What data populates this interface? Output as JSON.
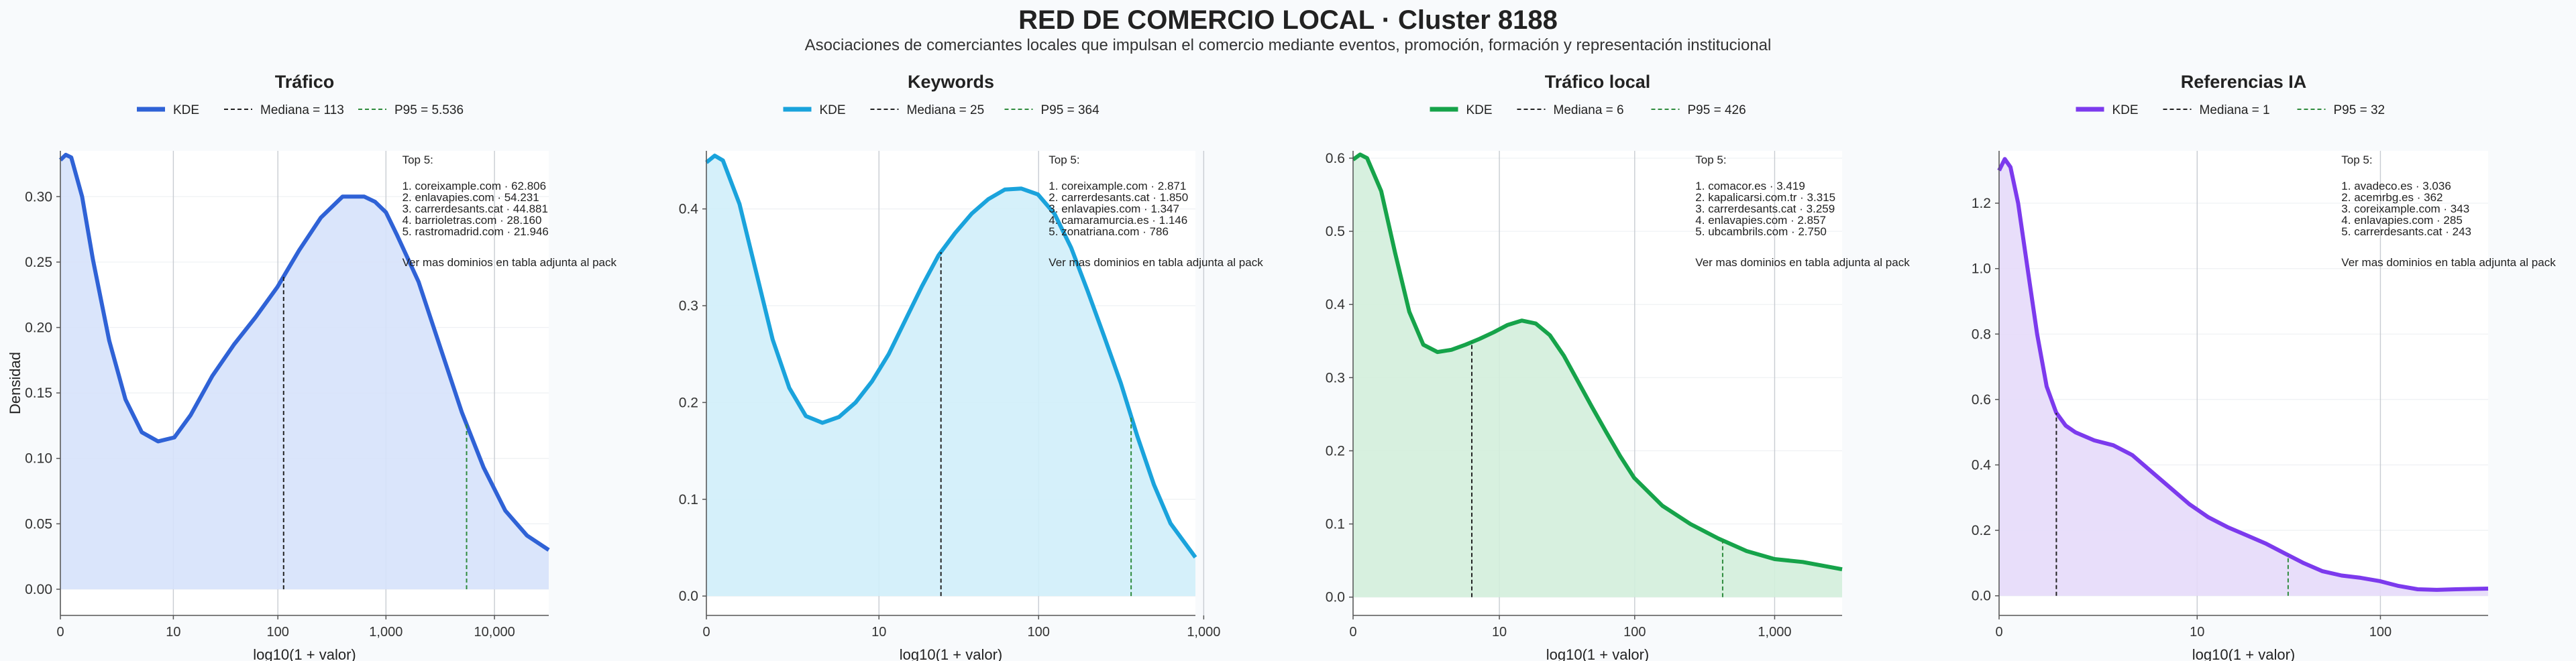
{
  "title": "RED DE COMERCIO LOCAL · Cluster 8188",
  "subtitle": "Asociaciones de comerciantes locales que impulsan el comercio mediante eventos, promoción, formación y representación institucional",
  "ylabel": "Densidad",
  "xlabel": "log10(1 + valor)",
  "legend_labels": {
    "kde": "KDE"
  },
  "top_header": "Top 5:",
  "top_footer": "Ver mas dominios en tabla adjunta al pack",
  "chart_data": [
    {
      "type": "area",
      "title": "Tráfico",
      "color": "#2f62d6",
      "fill": "#d6e2fb",
      "xlabel": "log10(1 + valor)",
      "ylabel": "Densidad",
      "xlim": [
        0,
        4.5
      ],
      "ylim": [
        -0.02,
        0.335
      ],
      "xticks": [
        0,
        1.041,
        2.004,
        3.0,
        4.0
      ],
      "xtick_labels": [
        "0",
        "10",
        "100",
        "1,000",
        "10,000"
      ],
      "yticks": [
        0,
        0.05,
        0.1,
        0.15,
        0.2,
        0.25,
        0.3
      ],
      "ytick_labels": [
        "0.00",
        "0.05",
        "0.10",
        "0.15",
        "0.20",
        "0.25",
        "0.30"
      ],
      "median": {
        "label": "Mediana = 113",
        "x": 2.057
      },
      "p95": {
        "label": "P95 = 5.536",
        "x": 3.743
      },
      "kde": {
        "x": [
          0,
          0.05,
          0.1,
          0.2,
          0.3,
          0.45,
          0.6,
          0.75,
          0.9,
          1.05,
          1.2,
          1.4,
          1.6,
          1.8,
          2.0,
          2.1,
          2.2,
          2.4,
          2.6,
          2.8,
          2.9,
          3.0,
          3.1,
          3.3,
          3.5,
          3.7,
          3.9,
          4.1,
          4.3,
          4.5
        ],
        "y": [
          0.328,
          0.332,
          0.33,
          0.3,
          0.252,
          0.19,
          0.145,
          0.12,
          0.113,
          0.116,
          0.133,
          0.163,
          0.187,
          0.208,
          0.231,
          0.245,
          0.259,
          0.284,
          0.3,
          0.3,
          0.296,
          0.288,
          0.271,
          0.235,
          0.185,
          0.135,
          0.093,
          0.06,
          0.041,
          0.03
        ]
      },
      "top5": [
        "1. coreixample.com · 62.806",
        "2. enlavapies.com · 54.231",
        "3. carrerdesants.cat · 44.881",
        "4. barrioletras.com · 28.160",
        "5. rastromadrid.com · 21.946"
      ]
    },
    {
      "type": "area",
      "title": "Keywords",
      "color": "#1aa3dc",
      "fill": "#d0eefa",
      "xlabel": "log10(1 + valor)",
      "ylabel": "",
      "xlim": [
        0,
        2.95
      ],
      "ylim": [
        -0.02,
        0.46
      ],
      "xticks": [
        0,
        1.041,
        2.004,
        3.0
      ],
      "xtick_labels": [
        "0",
        "10",
        "100",
        "1,000"
      ],
      "yticks": [
        0,
        0.1,
        0.2,
        0.3,
        0.4
      ],
      "ytick_labels": [
        "0.0",
        "0.1",
        "0.2",
        "0.3",
        "0.4"
      ],
      "median": {
        "label": "Mediana = 25",
        "x": 1.415
      },
      "p95": {
        "label": "P95 = 364",
        "x": 2.562
      },
      "kde": {
        "x": [
          0,
          0.05,
          0.1,
          0.2,
          0.3,
          0.4,
          0.5,
          0.6,
          0.7,
          0.8,
          0.9,
          1.0,
          1.1,
          1.2,
          1.3,
          1.4,
          1.5,
          1.6,
          1.7,
          1.8,
          1.9,
          2.0,
          2.1,
          2.2,
          2.3,
          2.4,
          2.5,
          2.6,
          2.7,
          2.8,
          2.95
        ],
        "y": [
          0.448,
          0.455,
          0.45,
          0.405,
          0.335,
          0.265,
          0.215,
          0.186,
          0.179,
          0.185,
          0.2,
          0.222,
          0.25,
          0.285,
          0.32,
          0.352,
          0.375,
          0.395,
          0.41,
          0.42,
          0.421,
          0.415,
          0.395,
          0.36,
          0.315,
          0.268,
          0.22,
          0.165,
          0.115,
          0.075,
          0.04
        ]
      },
      "top5": [
        "1. coreixample.com · 2.871",
        "2. carrerdesants.cat · 1.850",
        "3. enlavapies.com · 1.347",
        "4. camaramurcia.es · 1.146",
        "5. zonatriana.com · 786"
      ]
    },
    {
      "type": "area",
      "title": "Tráfico local",
      "color": "#16a34a",
      "fill": "#d3eedc",
      "xlabel": "log10(1 + valor)",
      "ylabel": "",
      "xlim": [
        0,
        3.48
      ],
      "ylim": [
        -0.025,
        0.61
      ],
      "xticks": [
        0,
        1.041,
        2.004,
        3.0
      ],
      "xtick_labels": [
        "0",
        "10",
        "100",
        "1,000"
      ],
      "yticks": [
        0,
        0.1,
        0.2,
        0.3,
        0.4,
        0.5,
        0.6
      ],
      "ytick_labels": [
        "0.0",
        "0.1",
        "0.2",
        "0.3",
        "0.4",
        "0.5",
        "0.6"
      ],
      "median": {
        "label": "Mediana = 6",
        "x": 0.845
      },
      "p95": {
        "label": "P95 = 426",
        "x": 2.63
      },
      "kde": {
        "x": [
          0,
          0.05,
          0.1,
          0.2,
          0.3,
          0.4,
          0.5,
          0.6,
          0.7,
          0.8,
          0.9,
          1.0,
          1.1,
          1.2,
          1.3,
          1.4,
          1.5,
          1.6,
          1.7,
          1.8,
          1.9,
          2.0,
          2.2,
          2.4,
          2.6,
          2.8,
          3.0,
          3.2,
          3.48
        ],
        "y": [
          0.598,
          0.605,
          0.6,
          0.555,
          0.47,
          0.39,
          0.345,
          0.335,
          0.338,
          0.345,
          0.353,
          0.362,
          0.372,
          0.378,
          0.374,
          0.358,
          0.33,
          0.295,
          0.26,
          0.226,
          0.193,
          0.163,
          0.125,
          0.1,
          0.08,
          0.063,
          0.052,
          0.048,
          0.038
        ]
      },
      "top5": [
        "1. comacor.es · 3.419",
        "2. kapalicarsi.com.tr · 3.315",
        "3. carrerdesants.cat · 3.259",
        "4. enlavapies.com · 2.857",
        "5. ubcambrils.com · 2.750"
      ]
    },
    {
      "type": "area",
      "title": "Referencias IA",
      "color": "#7c3aed",
      "fill": "#e6dafa",
      "xlabel": "log10(1 + valor)",
      "ylabel": "",
      "xlim": [
        0,
        2.57
      ],
      "ylim": [
        -0.06,
        1.36
      ],
      "xticks": [
        0,
        1.041,
        2.004
      ],
      "xtick_labels": [
        "0",
        "10",
        "100"
      ],
      "yticks": [
        0,
        0.2,
        0.4,
        0.6,
        0.8,
        1.0,
        1.2
      ],
      "ytick_labels": [
        "0.0",
        "0.2",
        "0.4",
        "0.6",
        "0.8",
        "1.0",
        "1.2"
      ],
      "median": {
        "label": "Mediana = 1",
        "x": 0.301
      },
      "p95": {
        "label": "P95 = 32",
        "x": 1.519
      },
      "kde": {
        "x": [
          0,
          0.03,
          0.06,
          0.1,
          0.15,
          0.2,
          0.25,
          0.3,
          0.35,
          0.4,
          0.5,
          0.6,
          0.7,
          0.8,
          0.9,
          1.0,
          1.1,
          1.2,
          1.3,
          1.4,
          1.5,
          1.6,
          1.7,
          1.8,
          1.9,
          2.0,
          2.1,
          2.2,
          2.3,
          2.4,
          2.57
        ],
        "y": [
          1.3,
          1.335,
          1.31,
          1.2,
          1.0,
          0.8,
          0.64,
          0.56,
          0.52,
          0.5,
          0.475,
          0.46,
          0.43,
          0.38,
          0.33,
          0.28,
          0.24,
          0.21,
          0.185,
          0.16,
          0.13,
          0.1,
          0.075,
          0.062,
          0.055,
          0.045,
          0.03,
          0.02,
          0.018,
          0.02,
          0.022
        ]
      },
      "top5": [
        "1. avadeco.es · 3.036",
        "2. acemrbg.es · 362",
        "3. coreixample.com · 343",
        "4. enlavapies.com · 285",
        "5. carrerdesants.cat · 243"
      ]
    }
  ]
}
